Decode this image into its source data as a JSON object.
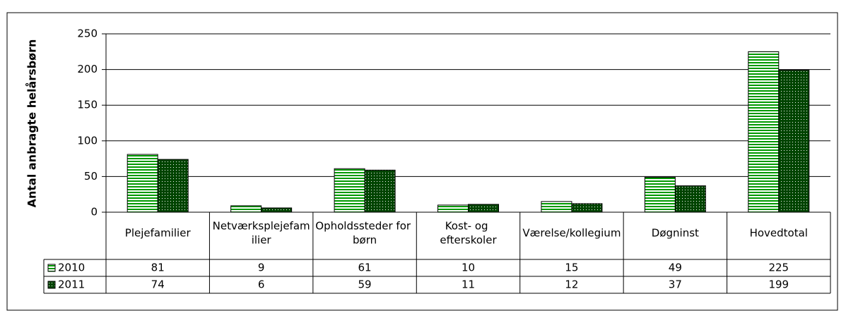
{
  "chart_data": {
    "type": "bar",
    "y_label": "Antal anbragte helårsbørn",
    "categories": [
      "Plejefamilier",
      "Netværksplejefamilier",
      "Opholdssteder for børn",
      "Kost- og efterskoler",
      "Værelse/kollegium",
      "Døgninst",
      "Hovedtotal"
    ],
    "series": [
      {
        "name": "2010",
        "color": "#009900",
        "pattern": "stripes",
        "values": [
          81,
          9,
          61,
          10,
          15,
          49,
          225
        ]
      },
      {
        "name": "2011",
        "color": "#004400",
        "pattern": "dots",
        "values": [
          74,
          6,
          59,
          11,
          12,
          37,
          199
        ]
      }
    ],
    "ylim": [
      0,
      250
    ],
    "yticks": [
      0,
      50,
      100,
      150,
      200,
      250
    ],
    "grid": true,
    "data_table": true
  }
}
